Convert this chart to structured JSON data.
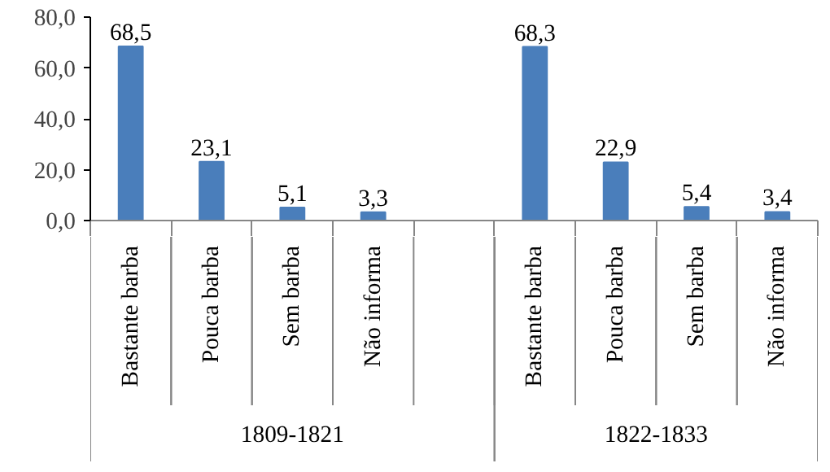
{
  "chart_data": {
    "type": "bar",
    "categories": [
      "Bastante barba",
      "Pouca barba",
      "Sem barba",
      "Não informa",
      null,
      "Bastante barba",
      "Pouca barba",
      "Sem barba",
      "Não informa"
    ],
    "values": [
      68.5,
      23.1,
      5.1,
      3.3,
      null,
      68.3,
      22.9,
      5.4,
      3.4
    ],
    "value_labels": [
      "68,5",
      "23,1",
      "5,1",
      "3,3",
      null,
      "68,3",
      "22,9",
      "5,4",
      "3,4"
    ],
    "color": "#4a7ebb",
    "ylim": [
      0,
      80
    ],
    "yticks": [
      {
        "value": 0,
        "label": "0,0"
      },
      {
        "value": 20,
        "label": "20,0"
      },
      {
        "value": 40,
        "label": "40,0"
      },
      {
        "value": 60,
        "label": "60,0"
      },
      {
        "value": 80,
        "label": "80,0"
      }
    ],
    "grid": false,
    "annotations": [
      "1809-1821",
      "1822-1833"
    ]
  }
}
